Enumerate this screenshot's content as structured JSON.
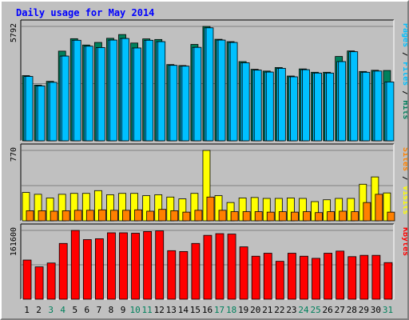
{
  "title": "Daily usage for May 2014",
  "chart_data": {
    "type": "bar",
    "categories": [
      "1",
      "2",
      "3",
      "4",
      "5",
      "6",
      "7",
      "8",
      "9",
      "10",
      "11",
      "12",
      "13",
      "14",
      "15",
      "16",
      "17",
      "18",
      "19",
      "20",
      "21",
      "22",
      "23",
      "24",
      "25",
      "26",
      "27",
      "28",
      "29",
      "30",
      "31"
    ],
    "weekend_days": [
      "3",
      "4",
      "10",
      "11",
      "17",
      "18",
      "24",
      "25",
      "31"
    ],
    "colors": {
      "hits": "#00805c",
      "files": "#00c0ff",
      "pages": "#00c0ff",
      "visits": "#ffff00",
      "sites": "#ff8000",
      "kbytes": "#ff0000",
      "title": "#0000ff",
      "weekday_label": "#000000",
      "weekend_label": "#00805c",
      "background": "#c0c0c0"
    },
    "panels": [
      {
        "id": "usage",
        "ylabel_max": "5792",
        "ylim": [
          0,
          5792
        ],
        "right_label": [
          {
            "text": "Pages",
            "color": "#00c0ff"
          },
          {
            "text": " / ",
            "color": "#000000"
          },
          {
            "text": "Files",
            "color": "#00c0ff"
          },
          {
            "text": " / ",
            "color": "#000000"
          },
          {
            "text": "Hits",
            "color": "#00805c"
          }
        ],
        "series": [
          {
            "key": "hits",
            "values": [
              3300,
              2820,
              3010,
              4540,
              5170,
              4850,
              4980,
              5190,
              5380,
              4950,
              5160,
              5130,
              3860,
              3810,
              4880,
              5790,
              5140,
              5020,
              4010,
              3620,
              3530,
              3710,
              3280,
              3640,
              3470,
              3470,
              4270,
              4550,
              3510,
              3570,
              3560
            ]
          },
          {
            "key": "files",
            "values": [
              3260,
              2780,
              2960,
              4290,
              5090,
              4790,
              4720,
              5100,
              5180,
              4700,
              5090,
              5020,
              3820,
              3780,
              4730,
              5720,
              5100,
              4980,
              3950,
              3580,
              3480,
              3670,
              3240,
              3600,
              3430,
              3430,
              4010,
              4510,
              3470,
              3530,
              2980
            ]
          },
          {
            "key": "pages",
            "values": [
              3260,
              2780,
              2960,
              4290,
              5090,
              4790,
              4720,
              5100,
              5180,
              4700,
              5090,
              5020,
              3820,
              3780,
              4730,
              5720,
              5100,
              4980,
              3950,
              3580,
              3480,
              3670,
              3240,
              3600,
              3430,
              3430,
              4010,
              4510,
              3470,
              3530,
              2980
            ]
          }
        ]
      },
      {
        "id": "visitors",
        "ylabel_max": "770",
        "ylim": [
          0,
          770
        ],
        "right_label": [
          {
            "text": "Sites",
            "color": "#ff8000"
          },
          {
            "text": " / ",
            "color": "#000000"
          },
          {
            "text": "Visits",
            "color": "#ffff00"
          }
        ],
        "series": [
          {
            "key": "visits",
            "values": [
              310,
              290,
              250,
              290,
              300,
              300,
              330,
              285,
              300,
              300,
              275,
              285,
              260,
              240,
              300,
              770,
              275,
              200,
              250,
              255,
              245,
              245,
              250,
              245,
              210,
              230,
              245,
              245,
              400,
              480,
              305
            ]
          },
          {
            "key": "sites",
            "values": [
              110,
              110,
              105,
              110,
              115,
              115,
              120,
              115,
              115,
              120,
              105,
              125,
              110,
              95,
              115,
              260,
              115,
              100,
              100,
              100,
              95,
              100,
              95,
              100,
              90,
              100,
              105,
              100,
              200,
              290,
              95
            ]
          }
        ]
      },
      {
        "id": "kbytes",
        "ylabel_max": "161600",
        "ylim": [
          0,
          161600
        ],
        "right_label": [
          {
            "text": "KBytes",
            "color": "#ff0000"
          }
        ],
        "series": [
          {
            "key": "kbytes",
            "values": [
              92000,
              76000,
              85000,
              131000,
              161500,
              140000,
              142000,
              156000,
              156000,
              155000,
              159000,
              160500,
              114000,
              112000,
              131000,
              150000,
              154000,
              153000,
              123000,
              101000,
              108000,
              89000,
              108000,
              101000,
              96000,
              108000,
              113000,
              100000,
              103000,
              103000,
              86000
            ]
          }
        ]
      }
    ]
  }
}
